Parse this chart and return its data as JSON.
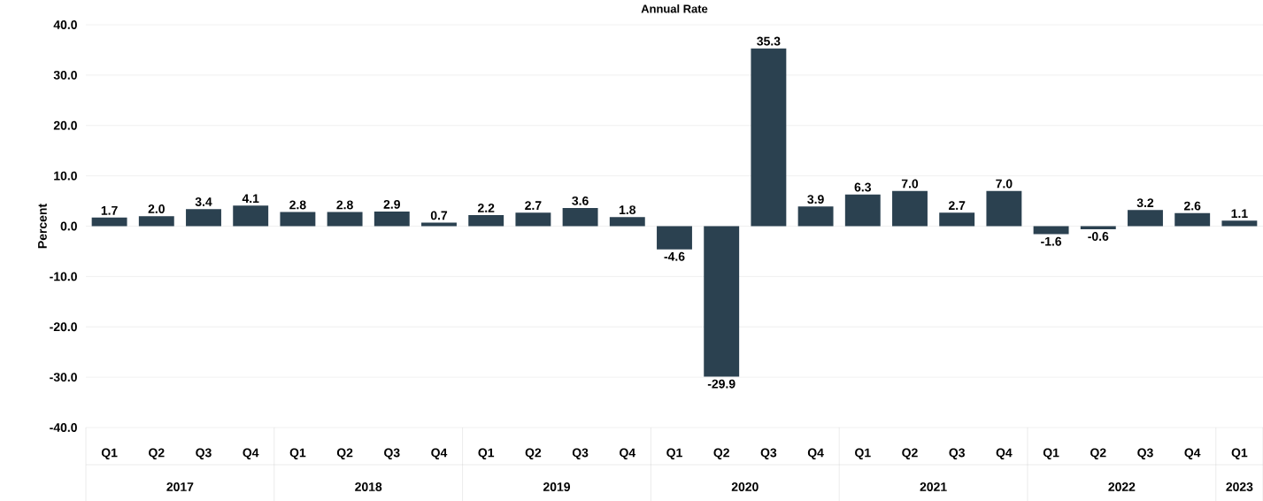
{
  "chart_data": {
    "type": "bar",
    "title": "Annual Rate",
    "ylabel": "Percent",
    "categories": [
      "Q1",
      "Q2",
      "Q3",
      "Q4",
      "Q1",
      "Q2",
      "Q3",
      "Q4",
      "Q1",
      "Q2",
      "Q3",
      "Q4",
      "Q1",
      "Q2",
      "Q3",
      "Q4",
      "Q1",
      "Q2",
      "Q3",
      "Q4",
      "Q1",
      "Q2",
      "Q3",
      "Q4",
      "Q1"
    ],
    "values": [
      1.7,
      2.0,
      3.4,
      4.1,
      2.8,
      2.8,
      2.9,
      0.7,
      2.2,
      2.7,
      3.6,
      1.8,
      -4.6,
      -29.9,
      35.3,
      3.9,
      6.3,
      7.0,
      2.7,
      7.0,
      -1.6,
      -0.6,
      3.2,
      2.6,
      1.1
    ],
    "value_labels": [
      "1.7",
      "2.0",
      "3.4",
      "4.1",
      "2.8",
      "2.8",
      "2.9",
      "0.7",
      "2.2",
      "2.7",
      "3.6",
      "1.8",
      "-4.6",
      "-29.9",
      "35.3",
      "3.9",
      "6.3",
      "7.0",
      "2.7",
      "7.0",
      "-1.6",
      "-0.6",
      "3.2",
      "2.6",
      "1.1"
    ],
    "annotations": [
      "2017",
      "2018",
      "2019",
      "2020",
      "2021",
      "2022",
      "2023"
    ],
    "color": "#2b4150",
    "ylim": [
      -40,
      40
    ],
    "yticks": [
      {
        "value": -40,
        "label": "-40.0"
      },
      {
        "value": -30,
        "label": "-30.0"
      },
      {
        "value": -20,
        "label": "-20.0"
      },
      {
        "value": -10,
        "label": "-10.0"
      },
      {
        "value": 0,
        "label": "0.0"
      },
      {
        "value": 10,
        "label": "10.0"
      },
      {
        "value": 20,
        "label": "20.0"
      },
      {
        "value": 30,
        "label": "30.0"
      },
      {
        "value": 40,
        "label": "40.0"
      }
    ],
    "grid": "y"
  }
}
